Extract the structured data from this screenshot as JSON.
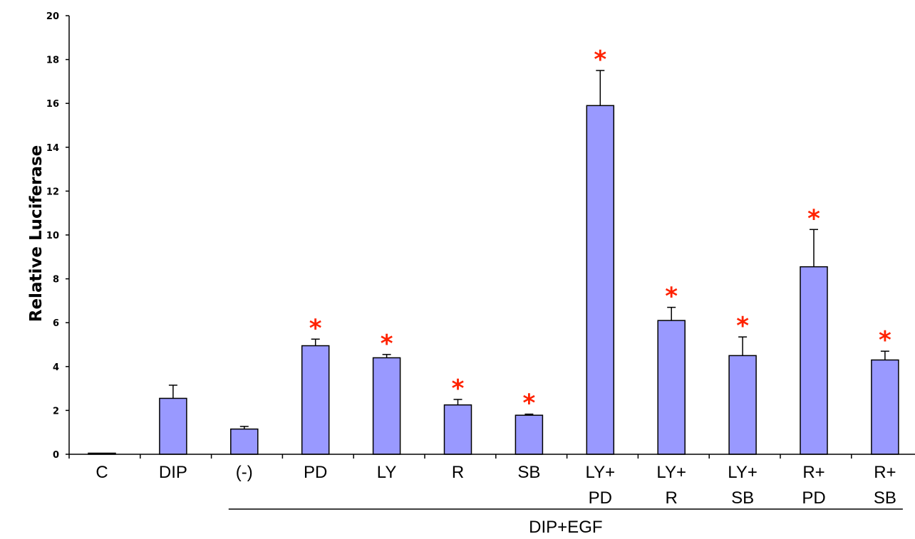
{
  "chart_data": {
    "type": "bar",
    "ylabel": "Relative Luciferase",
    "xlabel": "",
    "ylim": [
      0,
      20
    ],
    "yticks": [
      0,
      2,
      4,
      6,
      8,
      10,
      12,
      14,
      16,
      18,
      20
    ],
    "grid": false,
    "categories": [
      [
        "C"
      ],
      [
        "DIP"
      ],
      [
        "(-)"
      ],
      [
        "PD"
      ],
      [
        "LY"
      ],
      [
        "R"
      ],
      [
        "SB"
      ],
      [
        "LY+",
        "PD"
      ],
      [
        "LY+",
        "R"
      ],
      [
        "LY+",
        "SB"
      ],
      [
        "R+",
        "PD"
      ],
      [
        "R+",
        "SB"
      ]
    ],
    "values": [
      0.05,
      2.55,
      1.15,
      4.95,
      4.4,
      2.25,
      1.78,
      15.9,
      6.1,
      4.5,
      8.55,
      4.3
    ],
    "errors": [
      0,
      0.6,
      0.12,
      0.3,
      0.15,
      0.25,
      0.05,
      1.6,
      0.6,
      0.85,
      1.7,
      0.4
    ],
    "significant": [
      false,
      false,
      false,
      true,
      true,
      true,
      true,
      true,
      true,
      true,
      true,
      true
    ],
    "significance_marker": "*",
    "group_label": "DIP+EGF",
    "group_span": [
      2,
      11
    ],
    "bar_color": "#9999ff",
    "marker_color": "#ff2200"
  }
}
